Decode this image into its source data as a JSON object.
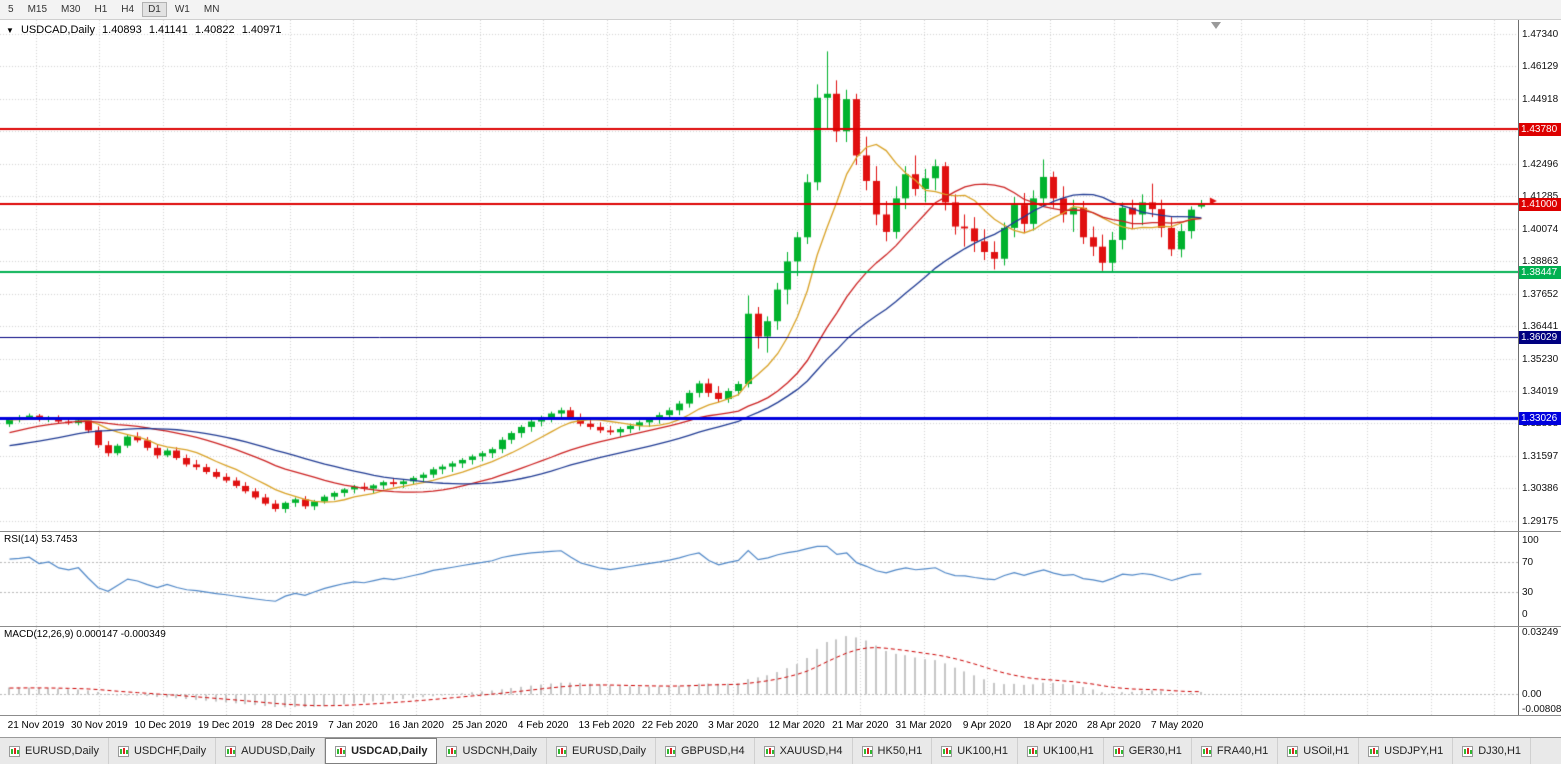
{
  "toolbar": {
    "timeframes": [
      {
        "label": "5",
        "active": false
      },
      {
        "label": "M15",
        "active": false
      },
      {
        "label": "M30",
        "active": false
      },
      {
        "label": "H1",
        "active": false
      },
      {
        "label": "H4",
        "active": false
      },
      {
        "label": "D1",
        "active": true
      },
      {
        "label": "W1",
        "active": false
      },
      {
        "label": "MN",
        "active": false
      }
    ]
  },
  "chart_data": {
    "type": "candlestick",
    "title": {
      "collapse_icon": "▼",
      "symbol": "USDCAD,Daily",
      "open": "1.40893",
      "high": "1.41141",
      "low": "1.40822",
      "close": "1.40971"
    },
    "colors": {
      "bull": "#00b22d",
      "bear": "#e01010",
      "grid": "#d4d4d4"
    },
    "price_axis": {
      "max": 1.4785,
      "min": 1.288,
      "labels": [
        "1.47340",
        "1.46129",
        "1.44918",
        "1.43707",
        "1.42496",
        "1.41285",
        "1.40074",
        "1.38863",
        "1.37652",
        "1.36441",
        "1.35230",
        "1.34019",
        "1.32808",
        "1.31597",
        "1.30386",
        "1.29175"
      ]
    },
    "horizontal_lines": [
      {
        "price": 1.4378,
        "label": "1.43780",
        "color": "#dd0000",
        "width": 2
      },
      {
        "price": 1.41,
        "label": "1.41000",
        "color": "#dd0000",
        "width": 2
      },
      {
        "price": 1.38447,
        "label": "1.38447",
        "color": "#00b050",
        "width": 2
      },
      {
        "price": 1.36029,
        "label": "1.36029",
        "color": "#000080",
        "width": 1
      },
      {
        "price": 1.33026,
        "label": "1.33026",
        "color": "#0000dd",
        "width": 3
      }
    ],
    "moving_averages": [
      {
        "name": "fast",
        "period": 8,
        "color": "#d9a226"
      },
      {
        "name": "medium",
        "period": 20,
        "color": "#cc2020"
      },
      {
        "name": "slow",
        "period": 30,
        "color": "#1f3a93"
      }
    ],
    "price_marker": {
      "price": 1.411,
      "color": "#e01010"
    },
    "date_axis": {
      "labels": [
        "21 Nov 2019",
        "30 Nov 2019",
        "10 Dec 2019",
        "19 Dec 2019",
        "28 Dec 2019",
        "7 Jan 2020",
        "16 Jan 2020",
        "25 Jan 2020",
        "4 Feb 2020",
        "13 Feb 2020",
        "22 Feb 2020",
        "3 Mar 2020",
        "12 Mar 2020",
        "21 Mar 2020",
        "31 Mar 2020",
        "9 Apr 2020",
        "18 Apr 2020",
        "28 Apr 2020",
        "7 May 2020"
      ]
    },
    "rsi": {
      "label": "RSI(14) 53.7453",
      "period": 14,
      "levels": [
        100,
        70,
        30,
        0
      ],
      "line_color": "#4f87c7"
    },
    "macd": {
      "label": "MACD(12,26,9) 0.000147 -0.000349",
      "fast": 12,
      "slow": 26,
      "signal": 9,
      "histogram_color": "#c6c6c6",
      "signal_color": "#cc0000",
      "axis": {
        "max": 0.03249,
        "min": -0.00808,
        "labels": [
          "0.03249",
          "0.00",
          "-0.00808"
        ]
      }
    },
    "seed_closes": [
      1.319,
      1.3205,
      1.322,
      1.3235,
      1.3228,
      1.324,
      1.3252,
      1.3245,
      1.3232,
      1.322,
      1.3208,
      1.3195,
      1.3185,
      1.3172,
      1.316,
      1.3148,
      1.3155,
      1.3168,
      1.318,
      1.3172,
      1.316,
      1.3145,
      1.313,
      1.3118,
      1.3105,
      1.3092,
      1.308,
      1.3068,
      1.3075,
      1.309,
      1.3108,
      1.3125,
      1.3142,
      1.316,
      1.3178,
      1.3195,
      1.3212,
      1.3228,
      1.3244,
      1.3258,
      1.327,
      1.328,
      1.3288,
      1.3294,
      1.3298,
      1.33,
      1.3296,
      1.329,
      1.3286,
      1.3292
    ],
    "candles": [
      [
        1.3278,
        1.3305,
        1.3268,
        1.3297
      ],
      [
        1.3297,
        1.3312,
        1.3285,
        1.3302
      ],
      [
        1.3302,
        1.3318,
        1.3294,
        1.331
      ],
      [
        1.331,
        1.3316,
        1.3288,
        1.3295
      ],
      [
        1.3295,
        1.3309,
        1.3286,
        1.3304
      ],
      [
        1.3304,
        1.3311,
        1.3281,
        1.3288
      ],
      [
        1.3288,
        1.33,
        1.3276,
        1.3282
      ],
      [
        1.3282,
        1.3298,
        1.3274,
        1.3292
      ],
      [
        1.3292,
        1.3302,
        1.3245,
        1.3255
      ],
      [
        1.3255,
        1.327,
        1.319,
        1.32
      ],
      [
        1.32,
        1.3215,
        1.3158,
        1.317
      ],
      [
        1.317,
        1.3205,
        1.3162,
        1.3198
      ],
      [
        1.3198,
        1.324,
        1.319,
        1.3232
      ],
      [
        1.3232,
        1.3248,
        1.321,
        1.3218
      ],
      [
        1.3218,
        1.323,
        1.318,
        1.319
      ],
      [
        1.319,
        1.3202,
        1.315,
        1.3162
      ],
      [
        1.3162,
        1.3188,
        1.3155,
        1.318
      ],
      [
        1.318,
        1.3192,
        1.3145,
        1.3152
      ],
      [
        1.3152,
        1.3165,
        1.312,
        1.3128
      ],
      [
        1.3128,
        1.3145,
        1.3108,
        1.3118
      ],
      [
        1.3118,
        1.313,
        1.3092,
        1.31
      ],
      [
        1.31,
        1.3112,
        1.3075,
        1.3082
      ],
      [
        1.3082,
        1.3095,
        1.306,
        1.3068
      ],
      [
        1.3068,
        1.308,
        1.304,
        1.3048
      ],
      [
        1.3048,
        1.3062,
        1.302,
        1.3028
      ],
      [
        1.3028,
        1.304,
        1.2998,
        1.3005
      ],
      [
        1.3005,
        1.3018,
        1.2975,
        1.2982
      ],
      [
        1.2982,
        1.2995,
        1.2952,
        1.2962
      ],
      [
        1.2962,
        1.299,
        1.2948,
        1.2985
      ],
      [
        1.2985,
        1.3005,
        1.297,
        1.2998
      ],
      [
        1.2998,
        1.301,
        1.2962,
        1.2972
      ],
      [
        1.2972,
        1.2996,
        1.2958,
        1.299
      ],
      [
        1.299,
        1.3015,
        1.2982,
        1.3008
      ],
      [
        1.3008,
        1.3028,
        1.2995,
        1.3022
      ],
      [
        1.3022,
        1.304,
        1.3008,
        1.3035
      ],
      [
        1.3035,
        1.3052,
        1.302,
        1.3045
      ],
      [
        1.3045,
        1.306,
        1.3028,
        1.3038
      ],
      [
        1.3038,
        1.3055,
        1.3022,
        1.305
      ],
      [
        1.305,
        1.3068,
        1.3035,
        1.3062
      ],
      [
        1.3062,
        1.3078,
        1.3045,
        1.3055
      ],
      [
        1.3055,
        1.3072,
        1.304,
        1.3065
      ],
      [
        1.3065,
        1.3085,
        1.3052,
        1.3078
      ],
      [
        1.3078,
        1.3098,
        1.306,
        1.309
      ],
      [
        1.309,
        1.3118,
        1.3078,
        1.311
      ],
      [
        1.311,
        1.3128,
        1.3092,
        1.312
      ],
      [
        1.312,
        1.314,
        1.31,
        1.3132
      ],
      [
        1.3132,
        1.3152,
        1.3115,
        1.3145
      ],
      [
        1.3145,
        1.3165,
        1.3128,
        1.3158
      ],
      [
        1.3158,
        1.3178,
        1.314,
        1.317
      ],
      [
        1.317,
        1.3192,
        1.3152,
        1.3185
      ],
      [
        1.3185,
        1.323,
        1.317,
        1.322
      ],
      [
        1.322,
        1.3252,
        1.3205,
        1.3245
      ],
      [
        1.3245,
        1.3275,
        1.3228,
        1.3268
      ],
      [
        1.3268,
        1.3295,
        1.325,
        1.3288
      ],
      [
        1.3288,
        1.331,
        1.327,
        1.3302
      ],
      [
        1.3302,
        1.3325,
        1.3285,
        1.3318
      ],
      [
        1.3318,
        1.334,
        1.3298,
        1.333
      ],
      [
        1.333,
        1.3342,
        1.3295,
        1.3305
      ],
      [
        1.3305,
        1.3318,
        1.327,
        1.328
      ],
      [
        1.328,
        1.3298,
        1.3258,
        1.3268
      ],
      [
        1.3268,
        1.3285,
        1.3245,
        1.3255
      ],
      [
        1.3255,
        1.3272,
        1.3238,
        1.3248
      ],
      [
        1.3248,
        1.3268,
        1.3232,
        1.326
      ],
      [
        1.326,
        1.328,
        1.3245,
        1.3272
      ],
      [
        1.3272,
        1.3292,
        1.3255,
        1.3285
      ],
      [
        1.3285,
        1.3305,
        1.3268,
        1.3298
      ],
      [
        1.3298,
        1.3322,
        1.328,
        1.3312
      ],
      [
        1.3312,
        1.334,
        1.3295,
        1.333
      ],
      [
        1.333,
        1.3365,
        1.3312,
        1.3355
      ],
      [
        1.3355,
        1.3405,
        1.334,
        1.3395
      ],
      [
        1.3395,
        1.344,
        1.3378,
        1.343
      ],
      [
        1.343,
        1.3448,
        1.338,
        1.3395
      ],
      [
        1.3395,
        1.342,
        1.336,
        1.3372
      ],
      [
        1.3372,
        1.3412,
        1.3358,
        1.3402
      ],
      [
        1.3402,
        1.3438,
        1.3385,
        1.3428
      ],
      [
        1.3428,
        1.3758,
        1.3415,
        1.369
      ],
      [
        1.369,
        1.3715,
        1.356,
        1.3605
      ],
      [
        1.3605,
        1.368,
        1.3545,
        1.3662
      ],
      [
        1.3662,
        1.3805,
        1.363,
        1.378
      ],
      [
        1.378,
        1.392,
        1.3725,
        1.3885
      ],
      [
        1.3885,
        1.3995,
        1.383,
        1.3975
      ],
      [
        1.3975,
        1.421,
        1.395,
        1.418
      ],
      [
        1.418,
        1.4545,
        1.415,
        1.4495
      ],
      [
        1.4495,
        1.4668,
        1.438,
        1.451
      ],
      [
        1.451,
        1.456,
        1.433,
        1.437
      ],
      [
        1.437,
        1.4525,
        1.433,
        1.449
      ],
      [
        1.449,
        1.451,
        1.4245,
        1.428
      ],
      [
        1.428,
        1.435,
        1.415,
        1.4185
      ],
      [
        1.4185,
        1.424,
        1.402,
        1.406
      ],
      [
        1.406,
        1.411,
        1.396,
        1.3995
      ],
      [
        1.3995,
        1.4165,
        1.397,
        1.412
      ],
      [
        1.412,
        1.424,
        1.408,
        1.421
      ],
      [
        1.421,
        1.428,
        1.413,
        1.4155
      ],
      [
        1.4155,
        1.423,
        1.4105,
        1.4195
      ],
      [
        1.4195,
        1.4265,
        1.415,
        1.424
      ],
      [
        1.424,
        1.4255,
        1.4075,
        1.4105
      ],
      [
        1.4105,
        1.4135,
        1.3985,
        1.4015
      ],
      [
        1.4015,
        1.406,
        1.394,
        1.4008
      ],
      [
        1.4008,
        1.405,
        1.392,
        1.396
      ],
      [
        1.396,
        1.4005,
        1.389,
        1.392
      ],
      [
        1.392,
        1.396,
        1.3855,
        1.3895
      ],
      [
        1.3895,
        1.403,
        1.387,
        1.401
      ],
      [
        1.401,
        1.4125,
        1.3975,
        1.4095
      ],
      [
        1.4095,
        1.414,
        1.399,
        1.4025
      ],
      [
        1.4025,
        1.415,
        1.4,
        1.412
      ],
      [
        1.412,
        1.4265,
        1.409,
        1.42
      ],
      [
        1.42,
        1.422,
        1.4085,
        1.412
      ],
      [
        1.412,
        1.4165,
        1.403,
        1.406
      ],
      [
        1.406,
        1.4115,
        1.3995,
        1.4085
      ],
      [
        1.4085,
        1.411,
        1.395,
        1.3975
      ],
      [
        1.3975,
        1.4015,
        1.3905,
        1.394
      ],
      [
        1.394,
        1.3985,
        1.385,
        1.388
      ],
      [
        1.388,
        1.3995,
        1.3845,
        1.3965
      ],
      [
        1.3965,
        1.4105,
        1.393,
        1.4085
      ],
      [
        1.4085,
        1.4115,
        1.4005,
        1.406
      ],
      [
        1.406,
        1.4135,
        1.402,
        1.4105
      ],
      [
        1.4105,
        1.4175,
        1.405,
        1.408
      ],
      [
        1.408,
        1.4115,
        1.3975,
        1.401
      ],
      [
        1.401,
        1.405,
        1.3905,
        1.393
      ],
      [
        1.393,
        1.4025,
        1.39,
        1.3998
      ],
      [
        1.3998,
        1.409,
        1.397,
        1.4078
      ],
      [
        1.40893,
        1.41141,
        1.40822,
        1.40971
      ]
    ]
  },
  "tabs": {
    "active_index": 3,
    "items": [
      "EURUSD,Daily",
      "USDCHF,Daily",
      "AUDUSD,Daily",
      "USDCAD,Daily",
      "USDCNH,Daily",
      "EURUSD,Daily",
      "GBPUSD,H4",
      "XAUUSD,H4",
      "HK50,H1",
      "UK100,H1",
      "UK100,H1",
      "GER30,H1",
      "FRA40,H1",
      "USOil,H1",
      "USDJPY,H1",
      "DJ30,H1"
    ]
  }
}
